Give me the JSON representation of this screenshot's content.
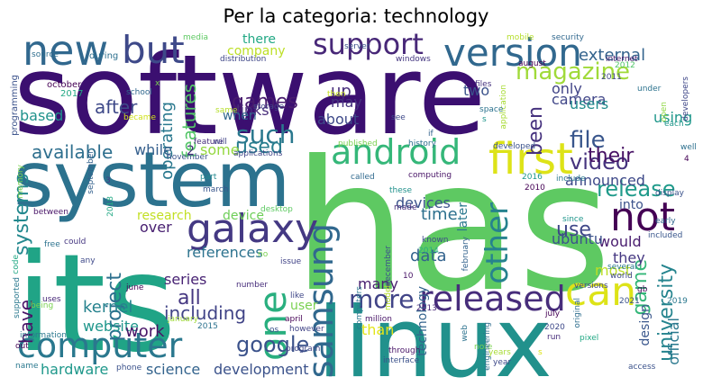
{
  "title": "Per la categoria: technology",
  "words": [
    {
      "text": "software",
      "color": "#3b0f70"
    },
    {
      "text": "has",
      "color": "#5ec962"
    },
    {
      "text": "its",
      "color": "#20a486"
    },
    {
      "text": "linux",
      "color": "#21918c"
    },
    {
      "text": "system",
      "color": "#2c728e"
    },
    {
      "text": "new",
      "color": "#31688e"
    },
    {
      "text": "version",
      "color": "#31688e"
    },
    {
      "text": "support",
      "color": "#482878"
    },
    {
      "text": "but",
      "color": "#3e4989"
    },
    {
      "text": "android",
      "color": "#35b779"
    },
    {
      "text": "first",
      "color": "#dde318"
    },
    {
      "text": "galaxy",
      "color": "#443983"
    },
    {
      "text": "not",
      "color": "#440154"
    },
    {
      "text": "can",
      "color": "#dde318"
    },
    {
      "text": "samsung",
      "color": "#31688e"
    },
    {
      "text": "one",
      "color": "#29af7f"
    },
    {
      "text": "released",
      "color": "#472d7b"
    },
    {
      "text": "computer",
      "color": "#2a788e"
    },
    {
      "text": "other",
      "color": "#26828e"
    },
    {
      "text": "magazine",
      "color": "#a0da39"
    },
    {
      "text": "more",
      "color": "#414487"
    },
    {
      "text": "file",
      "color": "#39568c"
    },
    {
      "text": "video",
      "color": "#46337e"
    },
    {
      "text": "such",
      "color": "#2a788e"
    },
    {
      "text": "game",
      "color": "#35b779"
    },
    {
      "text": "university",
      "color": "#25848e"
    },
    {
      "text": "google",
      "color": "#3b528b"
    },
    {
      "text": "release",
      "color": "#1f9a8a"
    },
    {
      "text": "available",
      "color": "#2e6f8e"
    },
    {
      "text": "systems",
      "color": "#23888e"
    },
    {
      "text": "features",
      "color": "#54c568"
    },
    {
      "text": "been",
      "color": "#46327e"
    },
    {
      "text": "their",
      "color": "#471164"
    },
    {
      "text": "games",
      "color": "#481c6e"
    },
    {
      "text": "used",
      "color": "#287d8e"
    },
    {
      "text": "all",
      "color": "#453781"
    },
    {
      "text": "project",
      "color": "#2d708e"
    },
    {
      "text": "use",
      "color": "#3f4788"
    },
    {
      "text": "have",
      "color": "#481467"
    },
    {
      "text": "kernel",
      "color": "#26828e"
    },
    {
      "text": "including",
      "color": "#414487"
    },
    {
      "text": "after",
      "color": "#3e4989"
    },
    {
      "text": "operating",
      "color": "#2a788e"
    },
    {
      "text": "external",
      "color": "#33638d"
    },
    {
      "text": "company",
      "color": "#bddf26"
    },
    {
      "text": "there",
      "color": "#22a884"
    },
    {
      "text": "up",
      "color": "#472d7b"
    },
    {
      "text": "two",
      "color": "#3b528b"
    },
    {
      "text": "links",
      "color": "#472c7a"
    },
    {
      "text": "camera",
      "color": "#404688"
    },
    {
      "text": "users",
      "color": "#228c8d"
    },
    {
      "text": "only",
      "color": "#414487"
    },
    {
      "text": "using",
      "color": "#1f978b"
    },
    {
      "text": "website",
      "color": "#1f968b"
    },
    {
      "text": "work",
      "color": "#481467"
    },
    {
      "text": "hardware",
      "color": "#1f988b"
    },
    {
      "text": "science",
      "color": "#33638d"
    },
    {
      "text": "development",
      "color": "#3b528b"
    },
    {
      "text": "references",
      "color": "#2c728e"
    },
    {
      "text": "series",
      "color": "#482374"
    },
    {
      "text": "user",
      "color": "#7ad151"
    },
    {
      "text": "many",
      "color": "#481f70"
    },
    {
      "text": "data",
      "color": "#33638d"
    },
    {
      "text": "time",
      "color": "#2d708e"
    },
    {
      "text": "devices",
      "color": "#3b528b"
    },
    {
      "text": "announced",
      "color": "#3e4989"
    },
    {
      "text": "would",
      "color": "#481c6e"
    },
    {
      "text": "they",
      "color": "#453781"
    },
    {
      "text": "most",
      "color": "#bddf26"
    },
    {
      "text": "official",
      "color": "#2a788e"
    },
    {
      "text": "design",
      "color": "#39568c"
    },
    {
      "text": "technology",
      "color": "#33638d"
    },
    {
      "text": "ubuntu",
      "color": "#3b528b"
    },
    {
      "text": "research",
      "color": "#c2df23"
    },
    {
      "text": "device",
      "color": "#6ece58"
    },
    {
      "text": "over",
      "color": "#482071"
    },
    {
      "text": "about",
      "color": "#3e4989"
    },
    {
      "text": "may",
      "color": "#46337e"
    },
    {
      "text": "when",
      "color": "#31688e"
    },
    {
      "text": "while",
      "color": "#355f8d"
    },
    {
      "text": "some",
      "color": "#95d840"
    },
    {
      "text": "based",
      "color": "#20928c"
    },
    {
      "text": "than",
      "color": "#e2e418"
    },
    {
      "text": "into",
      "color": "#3b528b"
    },
    {
      "text": "later",
      "color": "#2a788e"
    },
    {
      "text": "2",
      "color": "#472d7b"
    },
    {
      "text": "programming",
      "color": "#3b528b"
    },
    {
      "text": "source",
      "color": "#2e6e8e"
    },
    {
      "text": "october",
      "color": "#440154"
    },
    {
      "text": "2017",
      "color": "#22a884"
    },
    {
      "text": "during",
      "color": "#2d708e"
    },
    {
      "text": "media",
      "color": "#5ec962"
    },
    {
      "text": "distribution",
      "color": "#3f4788"
    },
    {
      "text": "server",
      "color": "#3b528b"
    },
    {
      "text": "windows",
      "color": "#453781"
    },
    {
      "text": "mobile",
      "color": "#b5de2b"
    },
    {
      "text": "security",
      "color": "#31688e"
    },
    {
      "text": "internet",
      "color": "#481a6c"
    },
    {
      "text": "2012",
      "color": "#52c569"
    },
    {
      "text": "august",
      "color": "#440154"
    },
    {
      "text": "2011",
      "color": "#404688"
    },
    {
      "text": "files",
      "color": "#46327e"
    },
    {
      "text": "application",
      "color": "#a8db34"
    },
    {
      "text": "developers",
      "color": "#3f4788"
    },
    {
      "text": "under",
      "color": "#2c728e"
    },
    {
      "text": "open",
      "color": "#8fd744"
    },
    {
      "text": "each",
      "color": "#1f978b"
    },
    {
      "text": "school",
      "color": "#31688e"
    },
    {
      "text": "storage",
      "color": "#414487"
    },
    {
      "text": "then",
      "color": "#c8e020"
    },
    {
      "text": "space",
      "color": "#2c728e"
    },
    {
      "text": "became",
      "color": "#d0e11c"
    },
    {
      "text": "same",
      "color": "#b5de2b"
    },
    {
      "text": "see",
      "color": "#3e4989"
    },
    {
      "text": "feature",
      "color": "#472d7b"
    },
    {
      "text": "will",
      "color": "#414487"
    },
    {
      "text": "applications",
      "color": "#404688"
    },
    {
      "text": "november",
      "color": "#3b528b"
    },
    {
      "text": "published",
      "color": "#7ad151"
    },
    {
      "text": "history",
      "color": "#2e6e8e"
    },
    {
      "text": "developed",
      "color": "#3b528b"
    },
    {
      "text": "if",
      "color": "#33638d"
    },
    {
      "text": "s",
      "color": "#1f968b"
    },
    {
      "text": "well",
      "color": "#2d708e"
    },
    {
      "text": "4",
      "color": "#440154"
    },
    {
      "text": "memory",
      "color": "#7ad151"
    },
    {
      "text": "september",
      "color": "#34618d"
    },
    {
      "text": "3",
      "color": "#433e85"
    },
    {
      "text": "part",
      "color": "#23898e"
    },
    {
      "text": "march",
      "color": "#39568c"
    },
    {
      "text": "called",
      "color": "#306a8e"
    },
    {
      "text": "computing",
      "color": "#481467"
    },
    {
      "text": "2016",
      "color": "#1f988b"
    },
    {
      "text": "include",
      "color": "#2a788e"
    },
    {
      "text": "2010",
      "color": "#440154"
    },
    {
      "text": "display",
      "color": "#3b528b"
    },
    {
      "text": "desktop",
      "color": "#5ec962"
    },
    {
      "text": "these",
      "color": "#21918c"
    },
    {
      "text": "made",
      "color": "#472c7a"
    },
    {
      "text": "2018",
      "color": "#22a884"
    },
    {
      "text": "since",
      "color": "#1f968b"
    },
    {
      "text": "early",
      "color": "#31688e"
    },
    {
      "text": "between",
      "color": "#481467"
    },
    {
      "text": "code",
      "color": "#22a884"
    },
    {
      "text": "free",
      "color": "#2c728e"
    },
    {
      "text": "could",
      "color": "#453781"
    },
    {
      "text": "known",
      "color": "#3e4989"
    },
    {
      "text": "2014",
      "color": "#29af7f"
    },
    {
      "text": "february",
      "color": "#33638d"
    },
    {
      "text": "included",
      "color": "#39568c"
    },
    {
      "text": "several",
      "color": "#2a788e"
    },
    {
      "text": "world",
      "color": "#3e4989"
    },
    {
      "text": "no",
      "color": "#7ad151"
    },
    {
      "text": "any",
      "color": "#3e4989"
    },
    {
      "text": "issue",
      "color": "#414487"
    },
    {
      "text": "december",
      "color": "#3b528b"
    },
    {
      "text": "model",
      "color": "#b5de2b"
    },
    {
      "text": "10",
      "color": "#481467"
    },
    {
      "text": "versions",
      "color": "#3f4788"
    },
    {
      "text": "supported",
      "color": "#2a788e"
    },
    {
      "text": "june",
      "color": "#440154"
    },
    {
      "text": "number",
      "color": "#472d7b"
    },
    {
      "text": "like",
      "color": "#3f4788"
    },
    {
      "text": "original",
      "color": "#2e6e8e"
    },
    {
      "text": "gb",
      "color": "#440154"
    },
    {
      "text": "2021",
      "color": "#3b528b"
    },
    {
      "text": "2019",
      "color": "#2a788e"
    },
    {
      "text": "being",
      "color": "#7ad151"
    },
    {
      "text": "uses",
      "color": "#482878"
    },
    {
      "text": "january",
      "color": "#a0da39"
    },
    {
      "text": "april",
      "color": "#440154"
    },
    {
      "text": "computers",
      "color": "#2a788e"
    },
    {
      "text": "2013",
      "color": "#482878"
    },
    {
      "text": "million",
      "color": "#481467"
    },
    {
      "text": "july",
      "color": "#440154"
    },
    {
      "text": "information",
      "color": "#2a788e"
    },
    {
      "text": "2015",
      "color": "#2c728e"
    },
    {
      "text": "os",
      "color": "#3b528b"
    },
    {
      "text": "however",
      "color": "#414487"
    },
    {
      "text": "2020",
      "color": "#3e4989"
    },
    {
      "text": "run",
      "color": "#472d7b"
    },
    {
      "text": "pixel",
      "color": "#22a884"
    },
    {
      "text": "out",
      "color": "#440154"
    },
    {
      "text": "program",
      "color": "#3f4788"
    },
    {
      "text": "web",
      "color": "#2c728e"
    },
    {
      "text": "through",
      "color": "#481467"
    },
    {
      "text": "note",
      "color": "#7ad151"
    },
    {
      "text": "engineering",
      "color": "#2e6e8e"
    },
    {
      "text": "interface",
      "color": "#3b528b"
    },
    {
      "text": "years",
      "color": "#a8db34"
    },
    {
      "text": "year",
      "color": "#3e4989"
    },
    {
      "text": "name",
      "color": "#2a788e"
    },
    {
      "text": "phone",
      "color": "#3b528b"
    },
    {
      "text": "access",
      "color": "#3b528b"
    },
    {
      "text": "x",
      "color": "#7ad151"
    },
    {
      "text": "s",
      "color": "#dde318"
    }
  ]
}
